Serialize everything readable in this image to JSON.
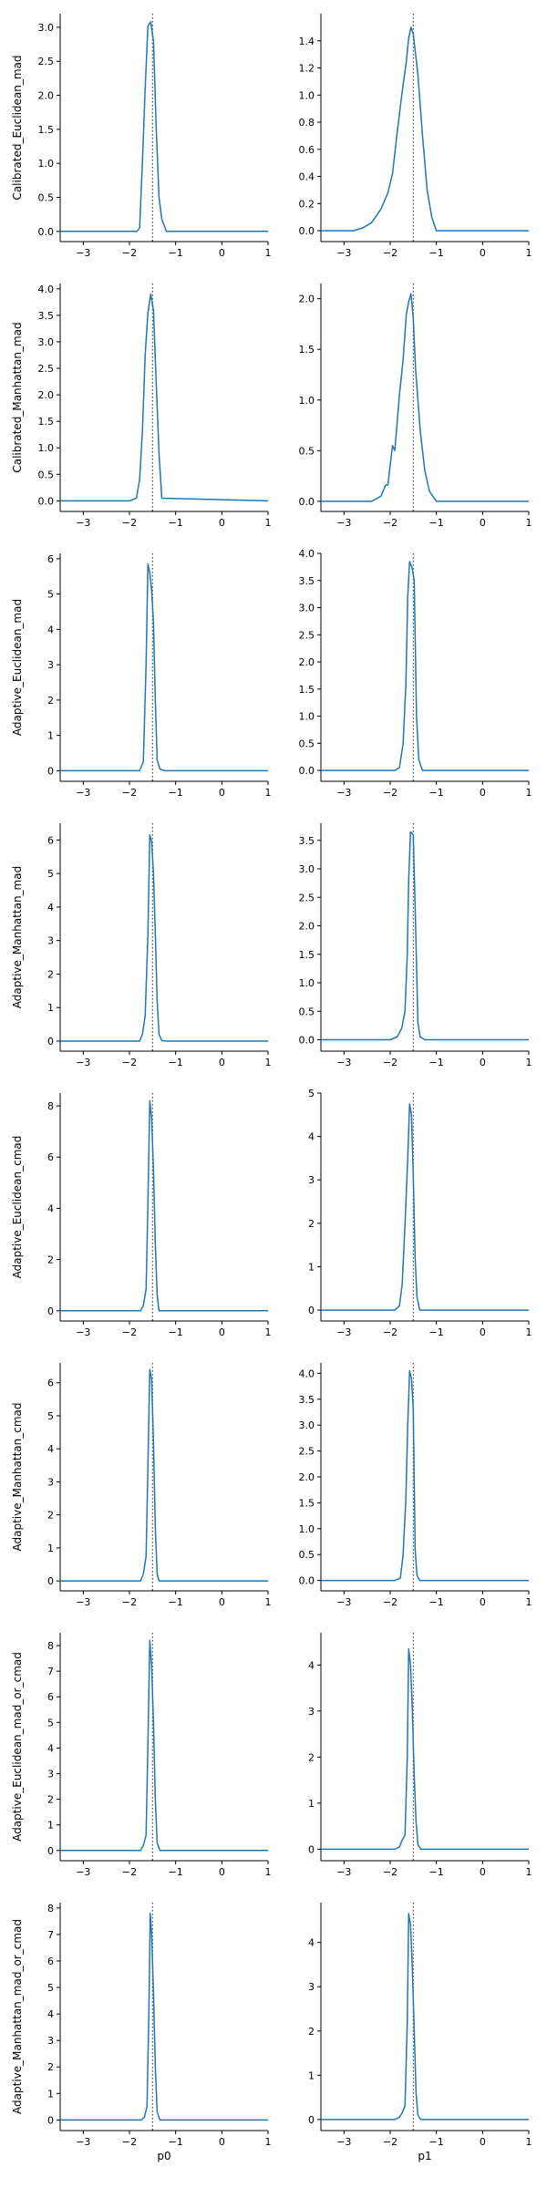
{
  "figure": {
    "line_color": "#1f77b4",
    "ref_line_color": "#444444",
    "axis_color": "#000000"
  },
  "chart_data": [
    {
      "type": "line",
      "row": 0,
      "col": 0,
      "ylabel": "Calibrated_Euclidean_mad",
      "xlabel": "",
      "xlim": [
        -3.5,
        1
      ],
      "ylim": [
        -0.15,
        3.2
      ],
      "xticks": [
        -3,
        -2,
        -1,
        0,
        1
      ],
      "yticks": [
        0,
        0.5,
        1,
        1.5,
        2,
        2.5,
        3
      ],
      "ref_x": -1.5,
      "x": [
        -3.5,
        -2.0,
        -1.84,
        -1.78,
        -1.72,
        -1.66,
        -1.6,
        -1.54,
        -1.48,
        -1.42,
        -1.36,
        -1.3,
        -1.2,
        1.0
      ],
      "y": [
        0,
        0,
        0,
        0.05,
        1.0,
        2.1,
        3.02,
        3.08,
        2.8,
        1.5,
        0.5,
        0.18,
        0,
        0
      ]
    },
    {
      "type": "line",
      "row": 0,
      "col": 1,
      "ylabel": "",
      "xlabel": "",
      "xlim": [
        -3.5,
        1
      ],
      "ylim": [
        -0.08,
        1.6
      ],
      "xticks": [
        -3,
        -2,
        -1,
        0,
        1
      ],
      "yticks": [
        0,
        0.2,
        0.4,
        0.6,
        0.8,
        1.0,
        1.2,
        1.4
      ],
      "ref_x": -1.5,
      "x": [
        -3.5,
        -2.8,
        -2.6,
        -2.4,
        -2.2,
        -2.05,
        -1.95,
        -1.85,
        -1.75,
        -1.65,
        -1.6,
        -1.55,
        -1.5,
        -1.4,
        -1.3,
        -1.2,
        -1.1,
        -1.0,
        1.0
      ],
      "y": [
        0,
        0,
        0.02,
        0.06,
        0.16,
        0.28,
        0.42,
        0.72,
        1.0,
        1.25,
        1.42,
        1.5,
        1.45,
        1.15,
        0.7,
        0.3,
        0.1,
        0,
        0
      ]
    },
    {
      "type": "line",
      "row": 1,
      "col": 0,
      "ylabel": "Calibrated_Manhattan_mad",
      "xlabel": "",
      "xlim": [
        -3.5,
        1
      ],
      "ylim": [
        -0.2,
        4.1
      ],
      "xticks": [
        -3,
        -2,
        -1,
        0,
        1
      ],
      "yticks": [
        0,
        0.5,
        1,
        1.5,
        2,
        2.5,
        3,
        3.5,
        4
      ],
      "ref_x": -1.5,
      "x": [
        -3.5,
        -2.0,
        -1.85,
        -1.78,
        -1.72,
        -1.66,
        -1.6,
        -1.54,
        -1.48,
        -1.42,
        -1.36,
        -1.3,
        1.0
      ],
      "y": [
        0,
        0,
        0.05,
        0.4,
        1.3,
        2.75,
        3.55,
        3.9,
        3.6,
        2.2,
        0.9,
        0.05,
        0
      ]
    },
    {
      "type": "line",
      "row": 1,
      "col": 1,
      "ylabel": "",
      "xlabel": "",
      "xlim": [
        -3.5,
        1
      ],
      "ylim": [
        -0.1,
        2.15
      ],
      "xticks": [
        -3,
        -2,
        -1,
        0,
        1
      ],
      "yticks": [
        0,
        0.5,
        1,
        1.5,
        2
      ],
      "ref_x": -1.5,
      "x": [
        -3.5,
        -2.4,
        -2.2,
        -2.1,
        -2.05,
        -1.95,
        -1.9,
        -1.8,
        -1.72,
        -1.65,
        -1.6,
        -1.55,
        -1.5,
        -1.45,
        -1.35,
        -1.25,
        -1.15,
        -1.0,
        1.0
      ],
      "y": [
        0,
        0,
        0.05,
        0.16,
        0.16,
        0.55,
        0.5,
        1.05,
        1.4,
        1.85,
        1.97,
        2.05,
        1.8,
        1.3,
        0.7,
        0.3,
        0.1,
        0,
        0
      ]
    },
    {
      "type": "line",
      "row": 2,
      "col": 0,
      "ylabel": "Adaptive_Euclidean_mad",
      "xlabel": "",
      "xlim": [
        -3.5,
        1
      ],
      "ylim": [
        -0.3,
        6.15
      ],
      "xticks": [
        -3,
        -2,
        -1,
        0,
        1
      ],
      "yticks": [
        0,
        1,
        2,
        3,
        4,
        5,
        6
      ],
      "ref_x": -1.5,
      "x": [
        -3.5,
        -1.78,
        -1.7,
        -1.64,
        -1.6,
        -1.56,
        -1.52,
        -1.48,
        -1.44,
        -1.4,
        -1.34,
        -1.25,
        1.0
      ],
      "y": [
        0,
        0,
        0.25,
        3.0,
        5.85,
        5.6,
        5.1,
        4.2,
        2.0,
        0.3,
        0.05,
        0,
        0
      ]
    },
    {
      "type": "line",
      "row": 2,
      "col": 1,
      "ylabel": "",
      "xlabel": "",
      "xlim": [
        -3.5,
        1
      ],
      "ylim": [
        -0.2,
        4.0
      ],
      "xticks": [
        -3,
        -2,
        -1,
        0,
        1
      ],
      "yticks": [
        0,
        0.5,
        1,
        1.5,
        2,
        2.5,
        3,
        3.5,
        4
      ],
      "ref_x": -1.5,
      "x": [
        -3.5,
        -1.9,
        -1.8,
        -1.72,
        -1.66,
        -1.62,
        -1.58,
        -1.53,
        -1.48,
        -1.43,
        -1.38,
        -1.3,
        1.0
      ],
      "y": [
        0,
        0,
        0.05,
        0.5,
        1.6,
        3.2,
        3.85,
        3.75,
        3.5,
        1.0,
        0.2,
        0,
        0
      ]
    },
    {
      "type": "line",
      "row": 3,
      "col": 0,
      "ylabel": "Adaptive_Manhattan_mad",
      "xlabel": "",
      "xlim": [
        -3.5,
        1
      ],
      "ylim": [
        -0.3,
        6.5
      ],
      "xticks": [
        -3,
        -2,
        -1,
        0,
        1
      ],
      "yticks": [
        0,
        1,
        2,
        3,
        4,
        5,
        6
      ],
      "ref_x": -1.5,
      "x": [
        -3.5,
        -1.78,
        -1.72,
        -1.66,
        -1.6,
        -1.56,
        -1.52,
        -1.48,
        -1.44,
        -1.4,
        -1.36,
        -1.3,
        -1.2,
        1.0
      ],
      "y": [
        0,
        0,
        0.2,
        0.75,
        3.2,
        6.15,
        5.95,
        5.0,
        3.2,
        1.2,
        0.2,
        0.02,
        0,
        0
      ]
    },
    {
      "type": "line",
      "row": 3,
      "col": 1,
      "ylabel": "",
      "xlabel": "",
      "xlim": [
        -3.5,
        1
      ],
      "ylim": [
        -0.2,
        3.8
      ],
      "xticks": [
        -3,
        -2,
        -1,
        0,
        1
      ],
      "yticks": [
        0,
        0.5,
        1,
        1.5,
        2,
        2.5,
        3,
        3.5
      ],
      "ref_x": -1.5,
      "x": [
        -3.5,
        -2.0,
        -1.85,
        -1.75,
        -1.68,
        -1.63,
        -1.6,
        -1.56,
        -1.5,
        -1.45,
        -1.4,
        -1.35,
        -1.25,
        1.0
      ],
      "y": [
        0,
        0,
        0.05,
        0.2,
        0.5,
        1.5,
        2.8,
        3.65,
        3.6,
        2.0,
        0.3,
        0.05,
        0,
        0
      ]
    },
    {
      "type": "line",
      "row": 4,
      "col": 0,
      "ylabel": "Adaptive_Euclidean_cmad",
      "xlabel": "",
      "xlim": [
        -3.5,
        1
      ],
      "ylim": [
        -0.4,
        8.5
      ],
      "xticks": [
        -3,
        -2,
        -1,
        0,
        1
      ],
      "yticks": [
        0,
        2,
        4,
        6,
        8
      ],
      "ref_x": -1.5,
      "x": [
        -3.5,
        -1.76,
        -1.7,
        -1.64,
        -1.6,
        -1.56,
        -1.52,
        -1.48,
        -1.44,
        -1.4,
        -1.36,
        1.0
      ],
      "y": [
        0,
        0,
        0.2,
        0.85,
        4.2,
        8.2,
        7.5,
        5.5,
        2.6,
        0.6,
        0,
        0
      ]
    },
    {
      "type": "line",
      "row": 4,
      "col": 1,
      "ylabel": "",
      "xlabel": "",
      "xlim": [
        -3.5,
        1
      ],
      "ylim": [
        -0.25,
        5.0
      ],
      "xticks": [
        -3,
        -2,
        -1,
        0,
        1
      ],
      "yticks": [
        0,
        1,
        2,
        3,
        4,
        5
      ],
      "ref_x": -1.5,
      "x": [
        -3.5,
        -1.9,
        -1.8,
        -1.74,
        -1.68,
        -1.62,
        -1.58,
        -1.54,
        -1.5,
        -1.46,
        -1.42,
        -1.36,
        -1.3,
        1.0
      ],
      "y": [
        0,
        0,
        0.1,
        0.6,
        1.95,
        3.5,
        4.75,
        4.5,
        3.1,
        1.2,
        0.3,
        0,
        0,
        0
      ]
    },
    {
      "type": "line",
      "row": 5,
      "col": 0,
      "ylabel": "Adaptive_Manhattan_cmad",
      "xlabel": "",
      "xlim": [
        -3.5,
        1
      ],
      "ylim": [
        -0.3,
        6.6
      ],
      "xticks": [
        -3,
        -2,
        -1,
        0,
        1
      ],
      "yticks": [
        0,
        1,
        2,
        3,
        4,
        5,
        6
      ],
      "ref_x": -1.5,
      "x": [
        -3.5,
        -1.76,
        -1.7,
        -1.64,
        -1.6,
        -1.56,
        -1.52,
        -1.48,
        -1.44,
        -1.4,
        -1.36,
        -1.3,
        1.0
      ],
      "y": [
        0,
        0,
        0.2,
        0.75,
        3.5,
        6.4,
        6.1,
        4.2,
        1.6,
        0.2,
        0,
        0,
        0
      ]
    },
    {
      "type": "line",
      "row": 5,
      "col": 1,
      "ylabel": "",
      "xlabel": "",
      "xlim": [
        -3.5,
        1
      ],
      "ylim": [
        -0.2,
        4.2
      ],
      "xticks": [
        -3,
        -2,
        -1,
        0,
        1
      ],
      "yticks": [
        0,
        0.5,
        1,
        1.5,
        2,
        2.5,
        3,
        3.5,
        4
      ],
      "ref_x": -1.5,
      "x": [
        -3.5,
        -1.9,
        -1.78,
        -1.72,
        -1.66,
        -1.62,
        -1.58,
        -1.54,
        -1.5,
        -1.46,
        -1.42,
        -1.36,
        -1.3,
        1.0
      ],
      "y": [
        0,
        0,
        0.05,
        0.5,
        1.6,
        3.0,
        4.05,
        3.9,
        3.3,
        0.6,
        0.1,
        0,
        0,
        0
      ]
    },
    {
      "type": "line",
      "row": 6,
      "col": 0,
      "ylabel": "Adaptive_Euclidean_mad_or_cmad",
      "xlabel": "",
      "xlim": [
        -3.5,
        1
      ],
      "ylim": [
        -0.4,
        8.5
      ],
      "xticks": [
        -3,
        -2,
        -1,
        0,
        1
      ],
      "yticks": [
        0,
        1,
        2,
        3,
        4,
        5,
        6,
        7,
        8
      ],
      "ref_x": -1.5,
      "x": [
        -3.5,
        -1.76,
        -1.7,
        -1.64,
        -1.6,
        -1.56,
        -1.52,
        -1.48,
        -1.44,
        -1.4,
        -1.34,
        1.0
      ],
      "y": [
        0,
        0,
        0.2,
        0.6,
        4.2,
        8.2,
        7.2,
        5.0,
        2.0,
        0.3,
        0,
        0
      ]
    },
    {
      "type": "line",
      "row": 6,
      "col": 1,
      "ylabel": "",
      "xlabel": "",
      "xlim": [
        -3.5,
        1
      ],
      "ylim": [
        -0.25,
        4.7
      ],
      "xticks": [
        -3,
        -2,
        -1,
        0,
        1
      ],
      "yticks": [
        0,
        1,
        2,
        3,
        4
      ],
      "ref_x": -1.5,
      "x": [
        -3.5,
        -1.9,
        -1.8,
        -1.74,
        -1.68,
        -1.63,
        -1.6,
        -1.56,
        -1.52,
        -1.48,
        -1.44,
        -1.4,
        -1.34,
        1.0
      ],
      "y": [
        0,
        0,
        0.05,
        0.2,
        0.3,
        2.0,
        4.35,
        4.0,
        3.0,
        1.6,
        0.6,
        0.1,
        0,
        0
      ]
    },
    {
      "type": "line",
      "row": 7,
      "col": 0,
      "ylabel": "Adaptive_Manhattan_mad_or_cmad",
      "xlabel": "p0",
      "xlim": [
        -3.5,
        1
      ],
      "ylim": [
        -0.4,
        8.2
      ],
      "xticks": [
        -3,
        -2,
        -1,
        0,
        1
      ],
      "yticks": [
        0,
        1,
        2,
        3,
        4,
        5,
        6,
        7,
        8
      ],
      "ref_x": -1.5,
      "x": [
        -3.5,
        -1.74,
        -1.68,
        -1.62,
        -1.58,
        -1.55,
        -1.52,
        -1.48,
        -1.44,
        -1.4,
        -1.34,
        1.0
      ],
      "y": [
        0,
        0,
        0.1,
        0.5,
        4.0,
        7.8,
        7.0,
        4.8,
        2.0,
        0.3,
        0,
        0
      ]
    },
    {
      "type": "line",
      "row": 7,
      "col": 1,
      "ylabel": "",
      "xlabel": "p1",
      "xlim": [
        -3.5,
        1
      ],
      "ylim": [
        -0.25,
        4.9
      ],
      "xticks": [
        -3,
        -2,
        -1,
        0,
        1
      ],
      "yticks": [
        0,
        1,
        2,
        3,
        4
      ],
      "ref_x": -1.5,
      "x": [
        -3.5,
        -1.9,
        -1.8,
        -1.74,
        -1.68,
        -1.63,
        -1.6,
        -1.56,
        -1.52,
        -1.48,
        -1.44,
        -1.4,
        -1.34,
        1.0
      ],
      "y": [
        0,
        0,
        0.05,
        0.15,
        0.3,
        2.2,
        4.65,
        4.4,
        3.4,
        2.0,
        0.6,
        0.1,
        0,
        0
      ]
    }
  ]
}
